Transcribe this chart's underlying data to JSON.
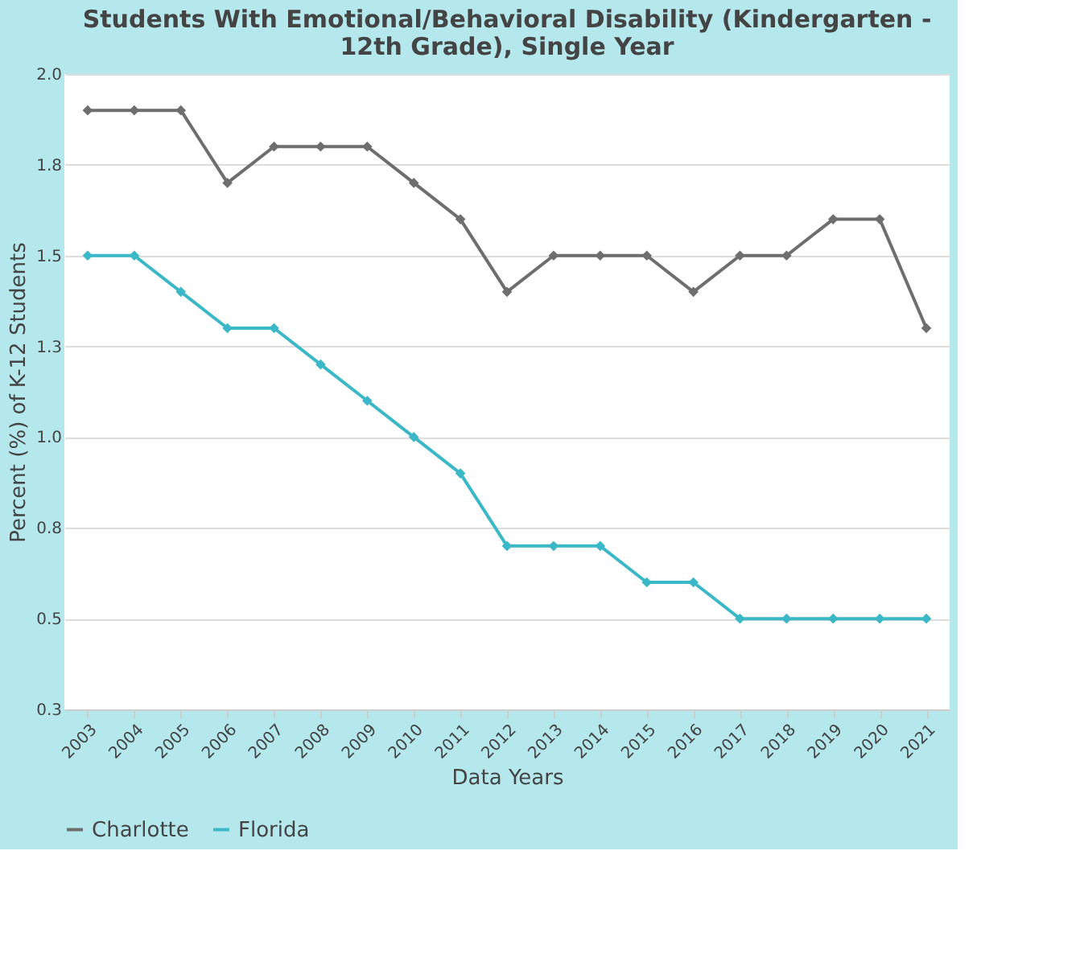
{
  "chart_data": {
    "type": "line",
    "title": "Students With Emotional/Behavioral Disability (Kindergarten - 12th Grade), Single Year",
    "xlabel": "Data Years",
    "ylabel": "Percent (%) of K-12 Students",
    "categories": [
      "2003",
      "2004",
      "2005",
      "2006",
      "2007",
      "2008",
      "2009",
      "2010",
      "2011",
      "2012",
      "2013",
      "2014",
      "2015",
      "2016",
      "2017",
      "2018",
      "2019",
      "2020",
      "2021"
    ],
    "series": [
      {
        "name": "Charlotte",
        "color": "#6e6e6e",
        "values": [
          1.9,
          1.9,
          1.9,
          1.7,
          1.8,
          1.8,
          1.8,
          1.7,
          1.6,
          1.4,
          1.5,
          1.5,
          1.5,
          1.4,
          1.5,
          1.5,
          1.6,
          1.6,
          1.3
        ]
      },
      {
        "name": "Florida",
        "color": "#3bb8c8",
        "values": [
          1.5,
          1.5,
          1.4,
          1.3,
          1.3,
          1.2,
          1.1,
          1.0,
          0.9,
          0.7,
          0.7,
          0.7,
          0.6,
          0.6,
          0.5,
          0.5,
          0.5,
          0.5,
          0.5
        ]
      }
    ],
    "ylim": [
      0.25,
      2.0
    ],
    "yticks": [
      {
        "value": 0.25,
        "label": "0.3"
      },
      {
        "value": 0.5,
        "label": "0.5"
      },
      {
        "value": 0.75,
        "label": "0.8"
      },
      {
        "value": 1.0,
        "label": "1.0"
      },
      {
        "value": 1.25,
        "label": "1.3"
      },
      {
        "value": 1.5,
        "label": "1.5"
      },
      {
        "value": 1.75,
        "label": "1.8"
      },
      {
        "value": 2.0,
        "label": "2.0"
      }
    ],
    "grid": "y",
    "legend": "bottom",
    "marker": "diamond",
    "line_style": "solid"
  }
}
